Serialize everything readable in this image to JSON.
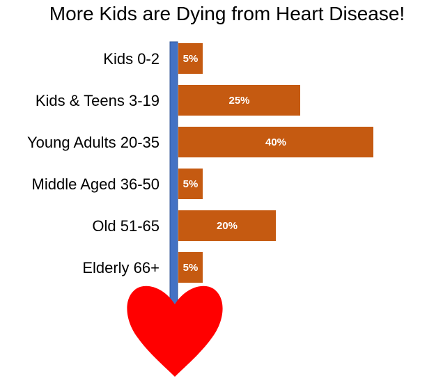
{
  "chart_data": {
    "type": "bar",
    "orientation": "horizontal",
    "title": "More Kids are Dying from Heart Disease!",
    "categories": [
      "Kids 0-2",
      "Kids & Teens 3-19",
      "Young Adults 20-35",
      "Middle Aged 36-50",
      "Old 51-65",
      "Elderly 66+"
    ],
    "values": [
      5,
      25,
      40,
      5,
      20,
      5
    ],
    "value_labels": [
      "5%",
      "25%",
      "40%",
      "5%",
      "20%",
      "5%"
    ],
    "xlim": [
      0,
      40
    ],
    "grid": false,
    "legend": "none",
    "colors": {
      "bar": "#C55A11",
      "axis": "#4472C4",
      "axis_border": "#2F5597",
      "heart": "#FF0000"
    }
  }
}
